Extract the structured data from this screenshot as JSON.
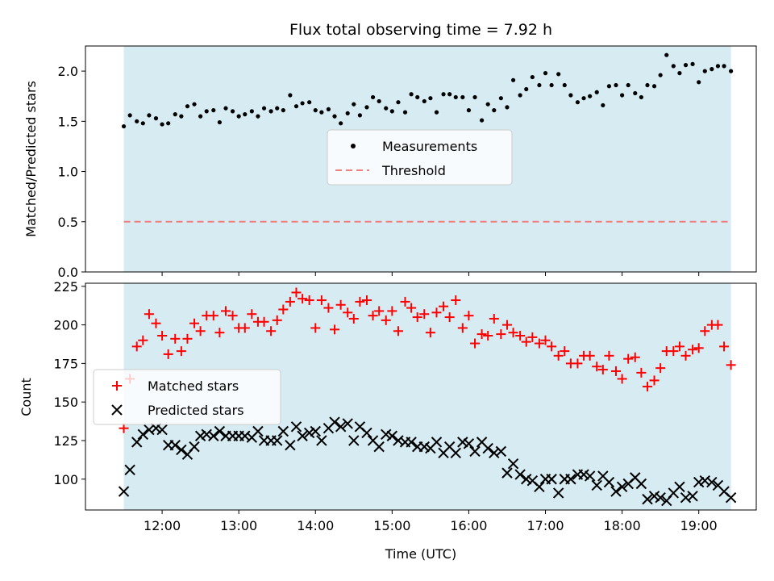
{
  "chart_data": [
    {
      "type": "scatter",
      "title": "Flux total observing time = 7.92 h",
      "ylabel": "Matched/Predicted stars",
      "xlabel": "",
      "ylim": [
        0,
        2.25
      ],
      "yticks": [
        "0.0",
        "0.5",
        "1.0",
        "1.5",
        "2.0"
      ],
      "xticks": [
        "12:00",
        "13:00",
        "14:00",
        "15:00",
        "16:00",
        "17:00",
        "18:00",
        "19:00"
      ],
      "x_unit": "hours (UTC)",
      "x_range": [
        11.0,
        19.75
      ],
      "observing_window": [
        11.5,
        19.42
      ],
      "window_color": "#add8e6",
      "threshold": 0.5,
      "threshold_color": "#f08080",
      "legend": {
        "position": "center",
        "entries": [
          "Measurements",
          "Threshold"
        ]
      },
      "series": [
        {
          "name": "Measurements",
          "color": "#000000",
          "marker": "dot",
          "x": [
            11.5,
            11.58,
            11.67,
            11.75,
            11.83,
            11.92,
            12.0,
            12.08,
            12.17,
            12.25,
            12.33,
            12.42,
            12.5,
            12.58,
            12.67,
            12.75,
            12.83,
            12.92,
            13.0,
            13.08,
            13.17,
            13.25,
            13.33,
            13.42,
            13.5,
            13.58,
            13.67,
            13.75,
            13.83,
            13.92,
            14.0,
            14.08,
            14.17,
            14.25,
            14.33,
            14.42,
            14.5,
            14.58,
            14.67,
            14.75,
            14.83,
            14.92,
            15.0,
            15.08,
            15.17,
            15.25,
            15.33,
            15.42,
            15.5,
            15.58,
            15.67,
            15.75,
            15.83,
            15.92,
            16.0,
            16.08,
            16.17,
            16.25,
            16.33,
            16.42,
            16.5,
            16.58,
            16.67,
            16.75,
            16.83,
            16.92,
            17.0,
            17.08,
            17.17,
            17.25,
            17.33,
            17.42,
            17.5,
            17.58,
            17.67,
            17.75,
            17.83,
            17.92,
            18.0,
            18.08,
            18.17,
            18.25,
            18.33,
            18.42,
            18.5,
            18.58,
            18.67,
            18.75,
            18.83,
            18.92,
            19.0,
            19.08,
            19.17,
            19.25,
            19.33,
            19.42
          ],
          "y": [
            1.45,
            1.56,
            1.5,
            1.48,
            1.56,
            1.53,
            1.47,
            1.48,
            1.57,
            1.55,
            1.65,
            1.67,
            1.55,
            1.6,
            1.61,
            1.49,
            1.63,
            1.6,
            1.55,
            1.57,
            1.6,
            1.55,
            1.63,
            1.6,
            1.63,
            1.61,
            1.76,
            1.65,
            1.68,
            1.69,
            1.61,
            1.59,
            1.62,
            1.55,
            1.48,
            1.58,
            1.67,
            1.56,
            1.64,
            1.74,
            1.7,
            1.63,
            1.6,
            1.69,
            1.59,
            1.77,
            1.74,
            1.7,
            1.73,
            1.59,
            1.77,
            1.77,
            1.74,
            1.74,
            1.61,
            1.74,
            1.51,
            1.67,
            1.61,
            1.73,
            1.64,
            1.91,
            1.76,
            1.82,
            1.94,
            1.86,
            1.98,
            1.86,
            1.97,
            1.86,
            1.76,
            1.69,
            1.73,
            1.75,
            1.79,
            1.66,
            1.85,
            1.86,
            1.76,
            1.86,
            1.78,
            1.74,
            1.86,
            1.85,
            1.96,
            2.16,
            2.05,
            1.98,
            2.06,
            2.07,
            1.89,
            2.0,
            2.02,
            2.05,
            2.05,
            2.0
          ]
        }
      ]
    },
    {
      "type": "scatter",
      "title": "",
      "xlabel": "Time (UTC)",
      "ylabel": "Count",
      "ylim": [
        80,
        227
      ],
      "yticks": [
        "100",
        "125",
        "150",
        "175",
        "200",
        "225"
      ],
      "xticks": [
        "12:00",
        "13:00",
        "14:00",
        "15:00",
        "16:00",
        "17:00",
        "18:00",
        "19:00"
      ],
      "x_unit": "hours (UTC)",
      "x_range": [
        11.0,
        19.75
      ],
      "observing_window": [
        11.5,
        19.42
      ],
      "window_color": "#add8e6",
      "legend": {
        "position": "center-left",
        "entries": [
          "Matched stars",
          "Predicted stars"
        ]
      },
      "series": [
        {
          "name": "Matched stars",
          "color": "#ff0000",
          "marker": "plus",
          "x": [
            11.5,
            11.58,
            11.67,
            11.75,
            11.83,
            11.92,
            12.0,
            12.08,
            12.17,
            12.25,
            12.33,
            12.42,
            12.5,
            12.58,
            12.67,
            12.75,
            12.83,
            12.92,
            13.0,
            13.08,
            13.17,
            13.25,
            13.33,
            13.42,
            13.5,
            13.58,
            13.67,
            13.75,
            13.83,
            13.92,
            14.0,
            14.08,
            14.17,
            14.25,
            14.33,
            14.42,
            14.5,
            14.58,
            14.67,
            14.75,
            14.83,
            14.92,
            15.0,
            15.08,
            15.17,
            15.25,
            15.33,
            15.42,
            15.5,
            15.58,
            15.67,
            15.75,
            15.83,
            15.92,
            16.0,
            16.08,
            16.17,
            16.25,
            16.33,
            16.42,
            16.5,
            16.58,
            16.67,
            16.75,
            16.83,
            16.92,
            17.0,
            17.08,
            17.17,
            17.25,
            17.33,
            17.42,
            17.5,
            17.58,
            17.67,
            17.75,
            17.83,
            17.92,
            18.0,
            18.08,
            18.17,
            18.25,
            18.33,
            18.42,
            18.5,
            18.58,
            18.67,
            18.75,
            18.83,
            18.92,
            19.0,
            19.08,
            19.17,
            19.25,
            19.33,
            19.42
          ],
          "y": [
            133,
            165,
            186,
            190,
            207,
            201,
            193,
            181,
            191,
            183,
            191,
            201,
            196,
            206,
            206,
            195,
            209,
            206,
            198,
            198,
            207,
            202,
            202,
            196,
            203,
            210,
            215,
            221,
            217,
            216,
            198,
            216,
            211,
            197,
            213,
            208,
            204,
            215,
            216,
            206,
            209,
            203,
            209,
            196,
            215,
            211,
            205,
            207,
            195,
            208,
            212,
            205,
            216,
            198,
            206,
            188,
            194,
            193,
            204,
            194,
            200,
            195,
            193,
            189,
            192,
            188,
            190,
            186,
            180,
            183,
            175,
            175,
            180,
            180,
            173,
            171,
            180,
            170,
            165,
            178,
            179,
            169,
            160,
            164,
            172,
            183,
            183,
            186,
            180,
            184,
            185,
            196,
            200,
            200,
            186,
            174
          ]
        },
        {
          "name": "Predicted stars",
          "color": "#000000",
          "marker": "x",
          "x": [
            11.5,
            11.58,
            11.67,
            11.75,
            11.83,
            11.92,
            12.0,
            12.08,
            12.17,
            12.25,
            12.33,
            12.42,
            12.5,
            12.58,
            12.67,
            12.75,
            12.83,
            12.92,
            13.0,
            13.08,
            13.17,
            13.25,
            13.33,
            13.42,
            13.5,
            13.58,
            13.67,
            13.75,
            13.83,
            13.92,
            14.0,
            14.08,
            14.17,
            14.25,
            14.33,
            14.42,
            14.5,
            14.58,
            14.67,
            14.75,
            14.83,
            14.92,
            15.0,
            15.08,
            15.17,
            15.25,
            15.33,
            15.42,
            15.5,
            15.58,
            15.67,
            15.75,
            15.83,
            15.92,
            16.0,
            16.08,
            16.17,
            16.25,
            16.33,
            16.42,
            16.5,
            16.58,
            16.67,
            16.75,
            16.83,
            16.92,
            17.0,
            17.08,
            17.17,
            17.25,
            17.33,
            17.42,
            17.5,
            17.58,
            17.67,
            17.75,
            17.83,
            17.92,
            18.0,
            18.08,
            18.17,
            18.25,
            18.33,
            18.42,
            18.5,
            18.58,
            18.67,
            18.75,
            18.83,
            18.92,
            19.0,
            19.08,
            19.17,
            19.25,
            19.33,
            19.42
          ],
          "y": [
            92,
            106,
            124,
            129,
            132,
            133,
            132,
            122,
            122,
            119,
            116,
            121,
            128,
            129,
            128,
            131,
            128,
            128,
            128,
            128,
            127,
            131,
            125,
            125,
            125,
            131,
            122,
            134,
            128,
            130,
            131,
            125,
            133,
            137,
            134,
            136,
            125,
            134,
            130,
            125,
            121,
            129,
            128,
            125,
            124,
            124,
            121,
            121,
            120,
            124,
            117,
            121,
            117,
            124,
            123,
            118,
            124,
            120,
            117,
            118,
            104,
            110,
            103,
            100,
            99,
            95,
            100,
            100,
            91,
            100,
            100,
            103,
            103,
            102,
            96,
            102,
            98,
            92,
            95,
            97,
            101,
            97,
            87,
            89,
            88,
            86,
            91,
            95,
            88,
            89,
            98,
            99,
            98,
            96,
            92,
            88
          ]
        }
      ]
    }
  ]
}
